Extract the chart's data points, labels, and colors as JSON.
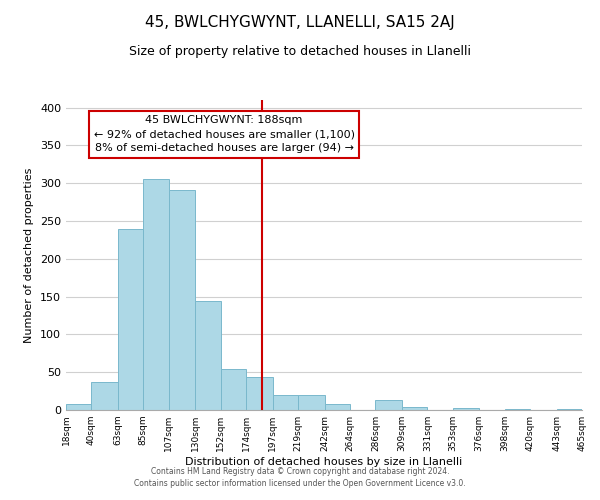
{
  "title": "45, BWLCHYGWYNT, LLANELLI, SA15 2AJ",
  "subtitle": "Size of property relative to detached houses in Llanelli",
  "xlabel": "Distribution of detached houses by size in Llanelli",
  "ylabel": "Number of detached properties",
  "footer_line1": "Contains HM Land Registry data © Crown copyright and database right 2024.",
  "footer_line2": "Contains public sector information licensed under the Open Government Licence v3.0.",
  "bar_edges": [
    18,
    40,
    63,
    85,
    107,
    130,
    152,
    174,
    197,
    219,
    242,
    264,
    286,
    309,
    331,
    353,
    376,
    398,
    420,
    443,
    465
  ],
  "bar_heights": [
    8,
    37,
    240,
    305,
    291,
    144,
    54,
    43,
    20,
    20,
    8,
    0,
    13,
    4,
    0,
    2,
    0,
    1,
    0,
    1
  ],
  "bar_color": "#add8e6",
  "bar_edge_color": "#7ab8cc",
  "vline_x": 188,
  "vline_color": "#cc0000",
  "annotation_title": "45 BWLCHYGWYNT: 188sqm",
  "annotation_line1": "← 92% of detached houses are smaller (1,100)",
  "annotation_line2": "8% of semi-detached houses are larger (94) →",
  "annotation_box_color": "#ffffff",
  "annotation_box_edge": "#cc0000",
  "ylim": [
    0,
    410
  ],
  "xlim": [
    18,
    465
  ],
  "yticks": [
    0,
    50,
    100,
    150,
    200,
    250,
    300,
    350,
    400
  ],
  "tick_labels": [
    "18sqm",
    "40sqm",
    "63sqm",
    "85sqm",
    "107sqm",
    "130sqm",
    "152sqm",
    "174sqm",
    "197sqm",
    "219sqm",
    "242sqm",
    "264sqm",
    "286sqm",
    "309sqm",
    "331sqm",
    "353sqm",
    "376sqm",
    "398sqm",
    "420sqm",
    "443sqm",
    "465sqm"
  ],
  "title_fontsize": 11,
  "subtitle_fontsize": 9,
  "ylabel_fontsize": 8,
  "xlabel_fontsize": 8,
  "ytick_fontsize": 8,
  "xtick_fontsize": 6.5,
  "footer_fontsize": 5.5,
  "annotation_fontsize": 8
}
